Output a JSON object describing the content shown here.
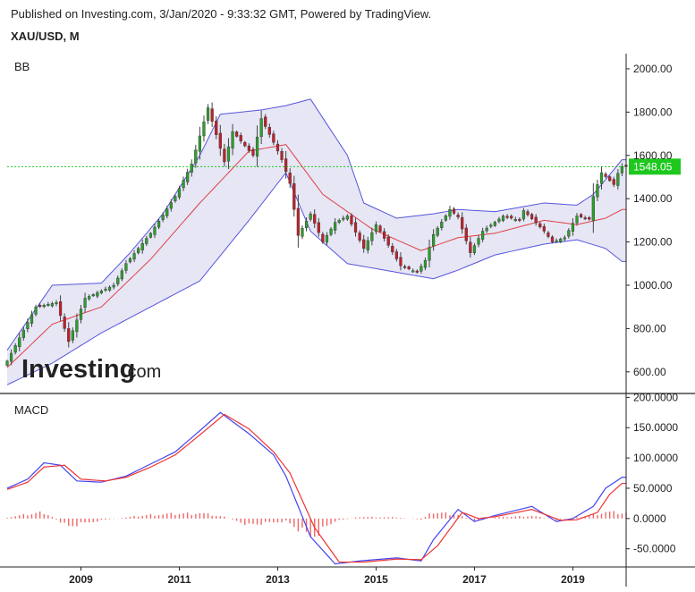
{
  "header": {
    "published": "Published on Investing.com, 3/Jan/2020 - 9:33:32 GMT, Powered by TradingView.",
    "symbol": "XAU/USD, M"
  },
  "watermark": {
    "brand": "Investing",
    "suffix": ".com"
  },
  "colors": {
    "up": "#2e9e2e",
    "down": "#c0202a",
    "bb_band": "#5555dd",
    "bb_fill": "#e6e6f5",
    "bb_mid": "#e04040",
    "macd": "#4444ee",
    "signal": "#ee3333",
    "hist": "#ee6666",
    "price_line": "#1ec81e",
    "price_badge": "#1ec81e"
  },
  "chart_data": [
    {
      "type": "candlestick",
      "panel": "price",
      "title": "BB",
      "indicator": "Bollinger Bands",
      "ylim": [
        500,
        2070
      ],
      "y_ticks": [
        600,
        800,
        1000,
        1200,
        1400,
        1600,
        1800,
        2000
      ],
      "y_tick_labels": [
        "600.00",
        "800.00",
        "1000.00",
        "1200.00",
        "1400.00",
        "1600.00",
        "1800.00",
        "2000.00"
      ],
      "current_price_label": "1548.05",
      "x_keypoints_close": [
        [
          "2007-07",
          650
        ],
        [
          "2008-02",
          900
        ],
        [
          "2008-07",
          920
        ],
        [
          "2008-10",
          740
        ],
        [
          "2009-02",
          940
        ],
        [
          "2009-09",
          1000
        ],
        [
          "2009-12",
          1100
        ],
        [
          "2010-06",
          1240
        ],
        [
          "2010-12",
          1410
        ],
        [
          "2011-04",
          1560
        ],
        [
          "2011-08",
          1820
        ],
        [
          "2011-12",
          1570
        ],
        [
          "2012-02",
          1710
        ],
        [
          "2012-07",
          1600
        ],
        [
          "2012-09",
          1770
        ],
        [
          "2012-12",
          1660
        ],
        [
          "2013-02",
          1580
        ],
        [
          "2013-04",
          1470
        ],
        [
          "2013-06",
          1230
        ],
        [
          "2013-09",
          1330
        ],
        [
          "2013-12",
          1200
        ],
        [
          "2014-03",
          1290
        ],
        [
          "2014-06",
          1320
        ],
        [
          "2014-10",
          1170
        ],
        [
          "2015-01",
          1280
        ],
        [
          "2015-07",
          1090
        ],
        [
          "2015-11",
          1060
        ],
        [
          "2016-01",
          1115
        ],
        [
          "2016-03",
          1235
        ],
        [
          "2016-07",
          1350
        ],
        [
          "2016-09",
          1315
        ],
        [
          "2016-12",
          1150
        ],
        [
          "2017-03",
          1250
        ],
        [
          "2017-08",
          1320
        ],
        [
          "2017-12",
          1300
        ],
        [
          "2018-01",
          1345
        ],
        [
          "2018-06",
          1250
        ],
        [
          "2018-08",
          1200
        ],
        [
          "2018-11",
          1220
        ],
        [
          "2019-02",
          1320
        ],
        [
          "2019-05",
          1305
        ],
        [
          "2019-06",
          1410
        ],
        [
          "2019-08",
          1520
        ],
        [
          "2019-11",
          1465
        ],
        [
          "2019-12",
          1517
        ],
        [
          "2020-01",
          1548
        ]
      ],
      "bb_upper_keypoints": [
        [
          "2007-07",
          700
        ],
        [
          "2008-06",
          1000
        ],
        [
          "2009-06",
          1010
        ],
        [
          "2010-01",
          1150
        ],
        [
          "2010-09",
          1330
        ],
        [
          "2011-06",
          1600
        ],
        [
          "2011-11",
          1790
        ],
        [
          "2012-09",
          1810
        ],
        [
          "2013-03",
          1830
        ],
        [
          "2013-09",
          1860
        ],
        [
          "2014-06",
          1600
        ],
        [
          "2014-10",
          1380
        ],
        [
          "2015-06",
          1310
        ],
        [
          "2016-03",
          1330
        ],
        [
          "2016-09",
          1350
        ],
        [
          "2017-06",
          1340
        ],
        [
          "2018-06",
          1380
        ],
        [
          "2019-02",
          1370
        ],
        [
          "2019-06",
          1420
        ],
        [
          "2020-01",
          1580
        ]
      ],
      "bb_middle_keypoints": [
        [
          "2007-07",
          620
        ],
        [
          "2008-06",
          820
        ],
        [
          "2009-06",
          900
        ],
        [
          "2010-06",
          1120
        ],
        [
          "2011-06",
          1380
        ],
        [
          "2012-06",
          1620
        ],
        [
          "2013-03",
          1650
        ],
        [
          "2013-12",
          1420
        ],
        [
          "2014-12",
          1260
        ],
        [
          "2015-12",
          1160
        ],
        [
          "2016-09",
          1220
        ],
        [
          "2017-06",
          1240
        ],
        [
          "2018-06",
          1300
        ],
        [
          "2019-02",
          1280
        ],
        [
          "2019-09",
          1310
        ],
        [
          "2020-01",
          1350
        ]
      ],
      "bb_lower_keypoints": [
        [
          "2007-07",
          540
        ],
        [
          "2008-06",
          640
        ],
        [
          "2009-06",
          780
        ],
        [
          "2010-06",
          900
        ],
        [
          "2011-06",
          1020
        ],
        [
          "2012-06",
          1300
        ],
        [
          "2013-03",
          1520
        ],
        [
          "2013-09",
          1250
        ],
        [
          "2014-06",
          1100
        ],
        [
          "2015-06",
          1060
        ],
        [
          "2016-03",
          1030
        ],
        [
          "2016-09",
          1070
        ],
        [
          "2017-06",
          1140
        ],
        [
          "2018-06",
          1190
        ],
        [
          "2019-02",
          1210
        ],
        [
          "2019-09",
          1170
        ],
        [
          "2020-01",
          1110
        ]
      ]
    },
    {
      "type": "line",
      "panel": "macd",
      "title": "MACD",
      "ylim": [
        -80,
        205
      ],
      "y_ticks": [
        -50,
        0,
        50,
        100,
        150,
        200
      ],
      "y_tick_labels": [
        "-50.0000",
        "0.0000",
        "50.0000",
        "100.0000",
        "150.0000",
        "200.0000"
      ],
      "series": [
        {
          "name": "",
          "color_key": "macd",
          "keypoints": [
            [
              "2007-07",
              50
            ],
            [
              "2007-12",
              65
            ],
            [
              "2008-04",
              92
            ],
            [
              "2008-08",
              88
            ],
            [
              "2008-12",
              62
            ],
            [
              "2009-06",
              60
            ],
            [
              "2009-12",
              70
            ],
            [
              "2010-06",
              90
            ],
            [
              "2010-12",
              110
            ],
            [
              "2011-06",
              145
            ],
            [
              "2011-11",
              175
            ],
            [
              "2012-06",
              140
            ],
            [
              "2012-12",
              105
            ],
            [
              "2013-03",
              70
            ],
            [
              "2013-09",
              -30
            ],
            [
              "2014-03",
              -75
            ],
            [
              "2014-09",
              -70
            ],
            [
              "2015-06",
              -65
            ],
            [
              "2015-12",
              -70
            ],
            [
              "2016-03",
              -35
            ],
            [
              "2016-09",
              15
            ],
            [
              "2017-01",
              -5
            ],
            [
              "2017-06",
              5
            ],
            [
              "2018-03",
              20
            ],
            [
              "2018-09",
              -5
            ],
            [
              "2019-01",
              0
            ],
            [
              "2019-06",
              20
            ],
            [
              "2019-09",
              50
            ],
            [
              "2020-01",
              68
            ]
          ]
        },
        {
          "name": "",
          "color_key": "signal",
          "keypoints": [
            [
              "2007-07",
              48
            ],
            [
              "2007-12",
              60
            ],
            [
              "2008-04",
              85
            ],
            [
              "2008-09",
              88
            ],
            [
              "2009-01",
              65
            ],
            [
              "2009-07",
              62
            ],
            [
              "2009-12",
              68
            ],
            [
              "2010-06",
              85
            ],
            [
              "2010-12",
              105
            ],
            [
              "2011-06",
              138
            ],
            [
              "2011-12",
              172
            ],
            [
              "2012-06",
              148
            ],
            [
              "2012-12",
              110
            ],
            [
              "2013-04",
              75
            ],
            [
              "2013-10",
              -15
            ],
            [
              "2014-04",
              -72
            ],
            [
              "2014-10",
              -72
            ],
            [
              "2015-06",
              -67
            ],
            [
              "2015-12",
              -68
            ],
            [
              "2016-04",
              -45
            ],
            [
              "2016-10",
              10
            ],
            [
              "2017-02",
              0
            ],
            [
              "2017-06",
              3
            ],
            [
              "2018-03",
              15
            ],
            [
              "2018-10",
              -3
            ],
            [
              "2019-02",
              -2
            ],
            [
              "2019-07",
              10
            ],
            [
              "2019-10",
              40
            ],
            [
              "2020-01",
              58
            ]
          ]
        }
      ],
      "histogram_keypoints": [
        [
          "2007-07",
          2
        ],
        [
          "2008-04",
          12
        ],
        [
          "2008-10",
          -15
        ],
        [
          "2009-06",
          -3
        ],
        [
          "2010-06",
          7
        ],
        [
          "2011-06",
          10
        ],
        [
          "2011-12",
          3
        ],
        [
          "2012-06",
          -12
        ],
        [
          "2013-03",
          -5
        ],
        [
          "2013-09",
          -35
        ],
        [
          "2014-03",
          -5
        ],
        [
          "2014-09",
          3
        ],
        [
          "2015-06",
          2
        ],
        [
          "2015-12",
          -2
        ],
        [
          "2016-03",
          12
        ],
        [
          "2016-09",
          7
        ],
        [
          "2017-01",
          -5
        ],
        [
          "2017-06",
          2
        ],
        [
          "2018-03",
          5
        ],
        [
          "2018-09",
          -3
        ],
        [
          "2019-03",
          3
        ],
        [
          "2019-09",
          12
        ],
        [
          "2020-01",
          10
        ]
      ]
    }
  ],
  "x_axis": {
    "year_labels": [
      "2009",
      "2011",
      "2013",
      "2015",
      "2017",
      "2019"
    ],
    "year_dates": [
      "2009-01",
      "2011-01",
      "2013-01",
      "2015-01",
      "2017-01",
      "2019-01"
    ]
  }
}
